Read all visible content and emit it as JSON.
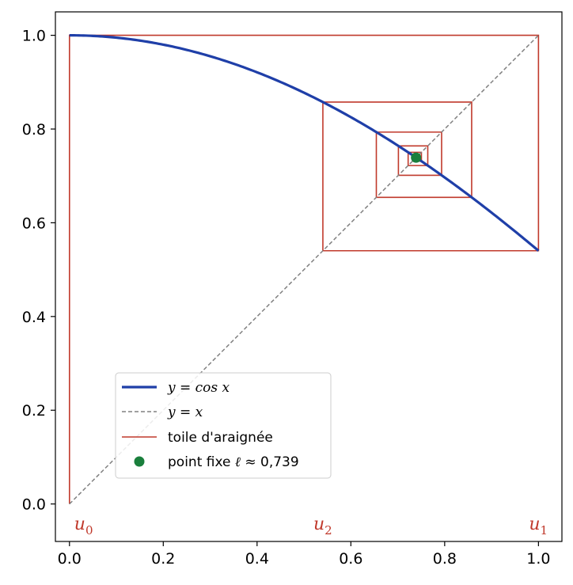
{
  "chart_data": {
    "type": "line",
    "title": "",
    "xlabel": "",
    "ylabel": "",
    "xlim": [
      -0.03,
      1.05
    ],
    "ylim": [
      -0.08,
      1.05
    ],
    "xticks": [
      0.0,
      0.2,
      0.4,
      0.6,
      0.8,
      1.0
    ],
    "xtick_labels": [
      "0.0",
      "0.2",
      "0.4",
      "0.6",
      "0.8",
      "1.0"
    ],
    "yticks": [
      0.0,
      0.2,
      0.4,
      0.6,
      0.8,
      1.0
    ],
    "ytick_labels": [
      "0.0",
      "0.2",
      "0.4",
      "0.6",
      "0.8",
      "1.0"
    ],
    "grid": false,
    "legend_position": "lower-left",
    "series": [
      {
        "name": "y = cos x",
        "kind": "curve",
        "function": "cos",
        "x_range": [
          0,
          1
        ],
        "color": "#1f3fa8"
      },
      {
        "name": "y = x",
        "kind": "line",
        "style": "dashed",
        "x": [
          0,
          1
        ],
        "y": [
          0,
          1
        ],
        "color": "#808080"
      },
      {
        "name": "toile d'araignée",
        "kind": "cobweb",
        "start": 0,
        "iterations": 14,
        "color": "#c0392b"
      },
      {
        "name": "point fixe ℓ ≈ 0,739",
        "kind": "point",
        "x": [
          0.739
        ],
        "y": [
          0.739
        ],
        "color": "#1a7f3c"
      }
    ],
    "legend": {
      "entries": [
        {
          "math": "y = cos x"
        },
        {
          "math": "y = x"
        },
        {
          "text": "toile d'araignée"
        },
        {
          "text": "point fixe ",
          "math": "ℓ",
          "suffix": " ≈ 0,739"
        }
      ]
    },
    "annotations": [
      {
        "text": "u",
        "sub": "0",
        "x": 0.0
      },
      {
        "text": "u",
        "sub": "2",
        "x": 0.5403
      },
      {
        "text": "u",
        "sub": "1",
        "x": 1.0
      }
    ],
    "annotation_color": "#c0392b"
  }
}
